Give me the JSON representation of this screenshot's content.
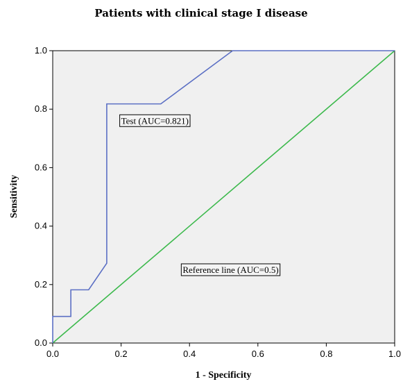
{
  "chart_data": {
    "type": "line",
    "title": "Patients with clinical stage I disease",
    "xlabel": "1 - Specificity",
    "ylabel": "Sensitivity",
    "xlim": [
      0,
      1
    ],
    "ylim": [
      0,
      1
    ],
    "xticks": [
      "0.0",
      "0.2",
      "0.4",
      "0.6",
      "0.8",
      "1.0"
    ],
    "yticks": [
      "0.0",
      "0.2",
      "0.4",
      "0.6",
      "0.8",
      "1.0"
    ],
    "grid": false,
    "background": "#f0f0f0",
    "series": [
      {
        "name": "Test (AUC=0.821)",
        "color": "#5b6fc4",
        "x": [
          0.0,
          0.0,
          0.053,
          0.053,
          0.105,
          0.158,
          0.158,
          0.316,
          0.526,
          1.0
        ],
        "y": [
          0.0,
          0.091,
          0.091,
          0.182,
          0.182,
          0.273,
          0.818,
          0.818,
          1.0,
          1.0
        ]
      },
      {
        "name": "Reference line (AUC=0.5)",
        "color": "#3cb94c",
        "x": [
          0.0,
          1.0
        ],
        "y": [
          0.0,
          1.0
        ]
      }
    ],
    "annotations": [
      {
        "text": "Test (AUC=0.821)",
        "x": 0.2,
        "y": 0.75
      },
      {
        "text": "Reference line (AUC=0.5)",
        "x": 0.38,
        "y": 0.24
      }
    ]
  }
}
